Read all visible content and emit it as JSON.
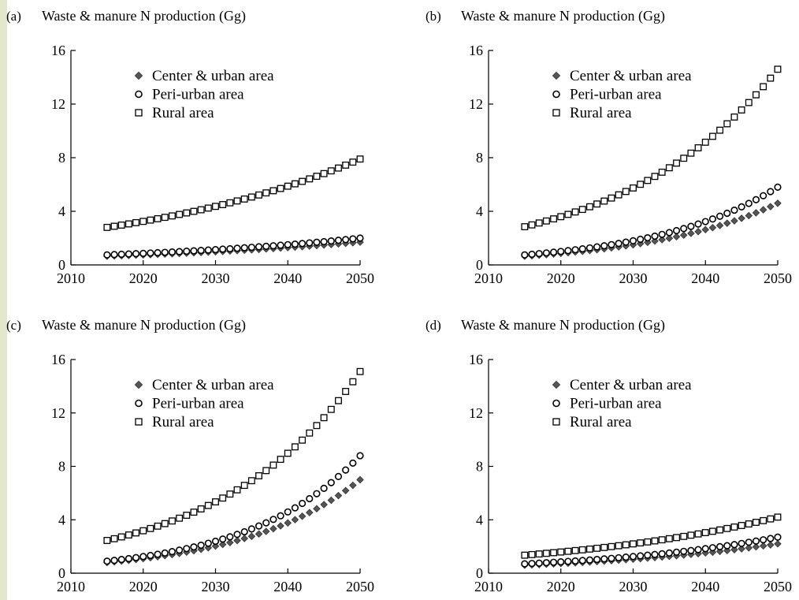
{
  "colors": {
    "strip": "#e5e8c8",
    "center_fill": "#555555",
    "marker_stroke": "#000000",
    "axis": "#000000"
  },
  "chart_data": [
    {
      "type": "scatter",
      "panel_label": "(a)",
      "title": "Waste & manure N production (Gg)",
      "xlabel": "",
      "ylabel": "",
      "xlim": [
        2010,
        2050
      ],
      "ylim": [
        0,
        16
      ],
      "xticks": [
        2010,
        2020,
        2030,
        2040,
        2050
      ],
      "yticks": [
        0,
        4,
        8,
        12,
        16
      ],
      "grid": false,
      "legend_position": "top-left",
      "x": {
        "start": 2015,
        "end": 2050,
        "step": 1
      },
      "series": [
        {
          "name": "Center & urban area",
          "marker": "diamond",
          "y_start": 0.65,
          "y_end": 1.7,
          "growth": "exponential"
        },
        {
          "name": "Peri-urban area",
          "marker": "circle",
          "y_start": 0.75,
          "y_end": 2.0,
          "growth": "exponential"
        },
        {
          "name": "Rural area",
          "marker": "square",
          "y_start": 2.8,
          "y_end": 7.9,
          "growth": "exponential"
        }
      ]
    },
    {
      "type": "scatter",
      "panel_label": "(b)",
      "title": "Waste & manure N production (Gg)",
      "xlabel": "",
      "ylabel": "",
      "xlim": [
        2010,
        2050
      ],
      "ylim": [
        0,
        16
      ],
      "xticks": [
        2010,
        2020,
        2030,
        2040,
        2050
      ],
      "yticks": [
        0,
        4,
        8,
        12,
        16
      ],
      "grid": false,
      "legend_position": "top-left",
      "x": {
        "start": 2015,
        "end": 2050,
        "step": 1
      },
      "series": [
        {
          "name": "Center & urban area",
          "marker": "diamond",
          "y_start": 0.65,
          "y_end": 4.6,
          "growth": "exponential"
        },
        {
          "name": "Peri-urban area",
          "marker": "circle",
          "y_start": 0.75,
          "y_end": 5.8,
          "growth": "exponential"
        },
        {
          "name": "Rural area",
          "marker": "square",
          "y_start": 2.85,
          "y_end": 14.6,
          "growth": "exponential"
        }
      ]
    },
    {
      "type": "scatter",
      "panel_label": "(c)",
      "title": "Waste & manure N production (Gg)",
      "xlabel": "",
      "ylabel": "",
      "xlim": [
        2010,
        2050
      ],
      "ylim": [
        0,
        16
      ],
      "xticks": [
        2010,
        2020,
        2030,
        2040,
        2050
      ],
      "yticks": [
        0,
        4,
        8,
        12,
        16
      ],
      "grid": false,
      "legend_position": "top-left",
      "x": {
        "start": 2015,
        "end": 2050,
        "step": 1
      },
      "series": [
        {
          "name": "Center & urban area",
          "marker": "diamond",
          "y_start": 0.8,
          "y_end": 7.0,
          "growth": "exponential"
        },
        {
          "name": "Peri-urban area",
          "marker": "circle",
          "y_start": 0.9,
          "y_end": 8.8,
          "growth": "exponential"
        },
        {
          "name": "Rural area",
          "marker": "square",
          "y_start": 2.45,
          "y_end": 15.1,
          "growth": "exponential"
        }
      ]
    },
    {
      "type": "scatter",
      "panel_label": "(d)",
      "title": "Waste & manure N production (Gg)",
      "xlabel": "",
      "ylabel": "",
      "xlim": [
        2010,
        2050
      ],
      "ylim": [
        0,
        16
      ],
      "xticks": [
        2010,
        2020,
        2030,
        2040,
        2050
      ],
      "yticks": [
        0,
        4,
        8,
        12,
        16
      ],
      "grid": false,
      "legend_position": "top-left",
      "x": {
        "start": 2015,
        "end": 2050,
        "step": 1
      },
      "series": [
        {
          "name": "Center & urban area",
          "marker": "diamond",
          "y_start": 0.6,
          "y_end": 2.2,
          "growth": "exponential"
        },
        {
          "name": "Peri-urban area",
          "marker": "circle",
          "y_start": 0.7,
          "y_end": 2.7,
          "growth": "exponential"
        },
        {
          "name": "Rural area",
          "marker": "square",
          "y_start": 1.35,
          "y_end": 4.2,
          "growth": "exponential"
        }
      ]
    }
  ]
}
